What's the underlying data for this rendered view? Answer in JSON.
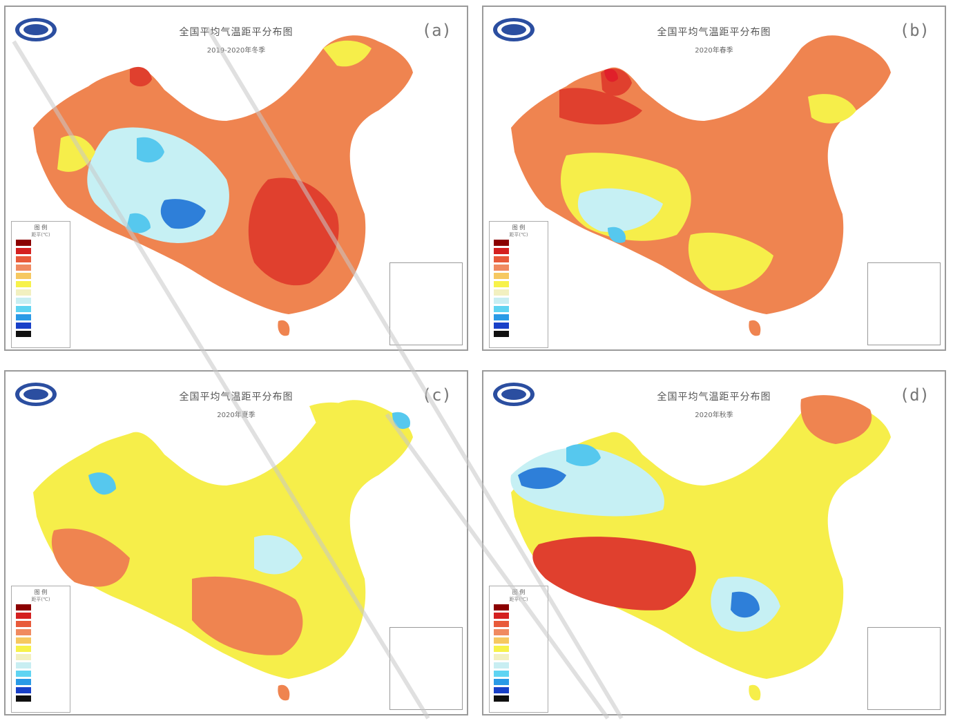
{
  "panels": [
    {
      "label": "(a)",
      "title": "全国平均气温距平分布图",
      "subtitle": "2019-2020年冬季"
    },
    {
      "label": "(b)",
      "title": "全国平均气温距平分布图",
      "subtitle": "2020年春季"
    },
    {
      "label": "(c)",
      "title": "全国平均气温距平分布图",
      "subtitle": "2020年夏季"
    },
    {
      "label": "(d)",
      "title": "全国平均气温距平分布图",
      "subtitle": "2020年秋季"
    }
  ],
  "legend": {
    "title": "图 例",
    "unit": "距平(℃)",
    "colors": [
      "#8b0000",
      "#d42020",
      "#e85a3a",
      "#f08a60",
      "#f6c860",
      "#f7f24a",
      "#f2f0c0",
      "#c8eef2",
      "#5fd4f2",
      "#2a9ae6",
      "#1840c8",
      "#101010"
    ]
  },
  "colors": {
    "warm_deep": "#e0402e",
    "warm": "#ef8450",
    "warm_light": "#f6b558",
    "neutral": "#f6ee4a",
    "cool_light": "#c6f0f4",
    "cool": "#56c8ee",
    "cool_deep": "#2e7fd9",
    "border": "#9a9a9a"
  }
}
